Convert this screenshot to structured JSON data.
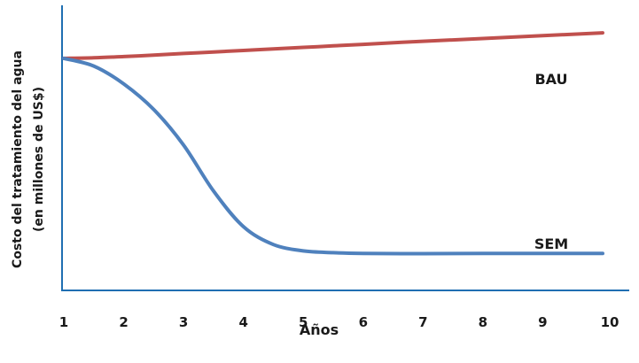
{
  "chart_data": {
    "type": "line",
    "title": "",
    "xlabel": "Años",
    "ylabel_lines": [
      "Costo del tratamiento del agua",
      "(en millones de US$)"
    ],
    "x": [
      1,
      1.5,
      2,
      2.5,
      3,
      3.5,
      4,
      4.5,
      5,
      5.5,
      6,
      7,
      8,
      9,
      10
    ],
    "xlim": [
      1,
      10
    ],
    "ylim": [
      0,
      1
    ],
    "x_ticks": [
      "1",
      "2",
      "3",
      "4",
      "5",
      "6",
      "7",
      "8",
      "9",
      "10"
    ],
    "y_ticks": [],
    "grid": false,
    "series": [
      {
        "name": "BAU",
        "color": "#c0504d",
        "values": [
          0.91,
          0.912,
          0.917,
          0.923,
          0.929,
          0.935,
          0.941,
          0.947,
          0.953,
          0.959,
          0.965,
          0.977,
          0.988,
          0.999,
          1.01
        ]
      },
      {
        "name": "SEM",
        "color": "#4f81bd",
        "values": [
          0.91,
          0.88,
          0.81,
          0.71,
          0.57,
          0.39,
          0.25,
          0.18,
          0.155,
          0.148,
          0.145,
          0.144,
          0.145,
          0.145,
          0.145
        ]
      }
    ],
    "series_labels": [
      "BAU",
      "SEM"
    ],
    "axis_color": "#1f6fb2"
  }
}
